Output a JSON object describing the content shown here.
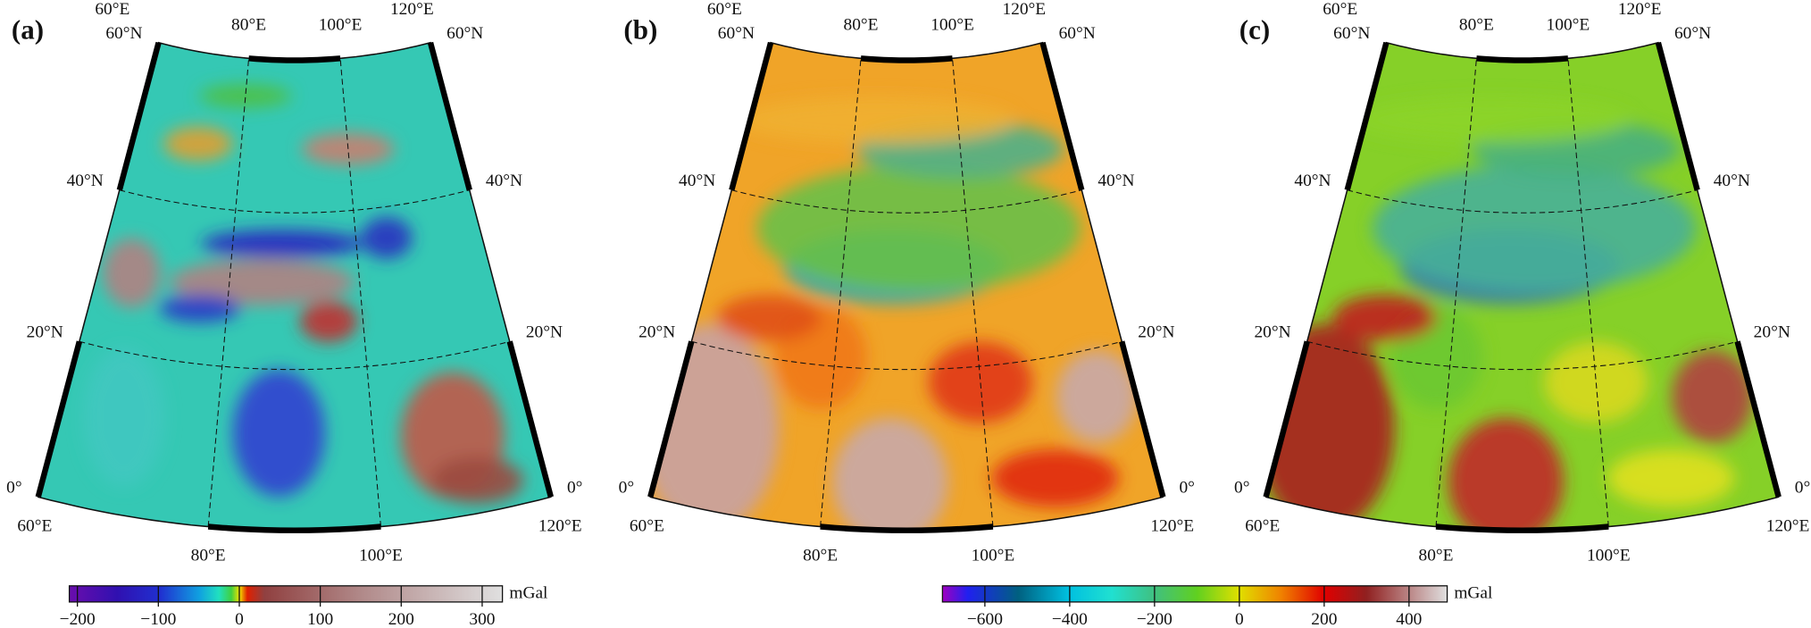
{
  "panels": [
    {
      "label": "(a)",
      "lonlim": [
        60,
        120
      ],
      "latlim": [
        0,
        60
      ],
      "lon_ticks": [
        {
          "value": 60,
          "label": "60°E"
        },
        {
          "value": 80,
          "label": "80°E"
        },
        {
          "value": 100,
          "label": "100°E"
        },
        {
          "value": 120,
          "label": "120°E"
        }
      ],
      "lat_ticks": [
        {
          "value": 0,
          "label": "0°"
        },
        {
          "value": 20,
          "label": "20°N"
        },
        {
          "value": 40,
          "label": "40°N"
        },
        {
          "value": 60,
          "label": "60°N"
        }
      ]
    },
    {
      "label": "(b)",
      "lonlim": [
        60,
        120
      ],
      "latlim": [
        0,
        60
      ],
      "lon_ticks": [
        {
          "value": 60,
          "label": "60°E"
        },
        {
          "value": 80,
          "label": "80°E"
        },
        {
          "value": 100,
          "label": "100°E"
        },
        {
          "value": 120,
          "label": "120°E"
        }
      ],
      "lat_ticks": [
        {
          "value": 0,
          "label": "0°"
        },
        {
          "value": 20,
          "label": "20°N"
        },
        {
          "value": 40,
          "label": "40°N"
        },
        {
          "value": 60,
          "label": "60°N"
        }
      ]
    },
    {
      "label": "(c)",
      "lonlim": [
        60,
        120
      ],
      "latlim": [
        0,
        60
      ],
      "lon_ticks": [
        {
          "value": 60,
          "label": "60°E"
        },
        {
          "value": 80,
          "label": "80°E"
        },
        {
          "value": 100,
          "label": "100°E"
        },
        {
          "value": 120,
          "label": "120°E"
        }
      ],
      "lat_ticks": [
        {
          "value": 0,
          "label": "0°"
        },
        {
          "value": 20,
          "label": "20°N"
        },
        {
          "value": 40,
          "label": "40°N"
        },
        {
          "value": 60,
          "label": "60°N"
        }
      ]
    }
  ],
  "colorbars": [
    {
      "lim": [
        -210,
        325
      ],
      "unit": "mGal",
      "ticks": [
        {
          "value": -200,
          "label": "−200"
        },
        {
          "value": -100,
          "label": "−100"
        },
        0,
        100,
        200,
        300
      ]
    },
    {
      "lim": [
        -700,
        490
      ],
      "unit": "mGal",
      "ticks": [
        {
          "value": -600,
          "label": "−600"
        },
        {
          "value": -400,
          "label": "−400"
        },
        {
          "value": -200,
          "label": "−200"
        },
        0,
        200,
        400
      ]
    }
  ]
}
